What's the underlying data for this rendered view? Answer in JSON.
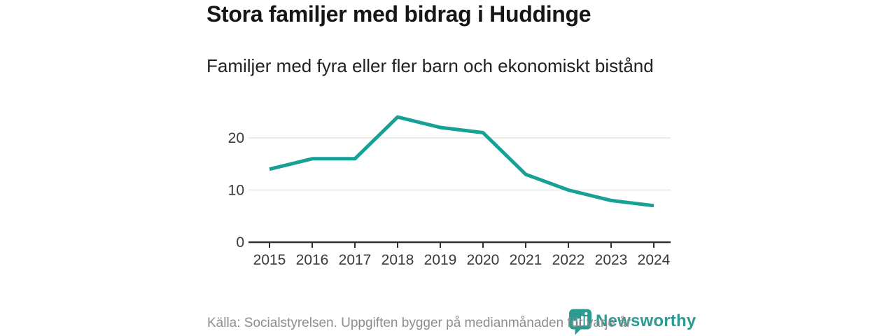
{
  "header": {
    "title": "Stora familjer med bidrag i Huddinge",
    "subtitle": "Familjer med fyra eller fler barn och ekonomiskt bistånd"
  },
  "footer": {
    "source_text": "Källa: Socialstyrelsen. Uppgiften bygger på medianmånaden för varje år",
    "brand_name": "Newsworthy",
    "brand_icon": "newsworthy-speech-bubble-bar-chart-icon"
  },
  "colors": {
    "accent_line": "#17a096",
    "brand_teal": "#2b9a90",
    "grid": "#e4e4e4",
    "axis": "#2e2e2e",
    "axis_text": "#3a3a3a",
    "title_text": "#161616",
    "muted_text": "#8d8d8d"
  },
  "chart_data": {
    "type": "line",
    "title": "Stora familjer med bidrag i Huddinge",
    "subtitle": "Familjer med fyra eller fler barn och ekonomiskt bistånd",
    "categories": [
      "2015",
      "2016",
      "2017",
      "2018",
      "2019",
      "2020",
      "2021",
      "2022",
      "2023",
      "2024"
    ],
    "series": [
      {
        "name": "Familjer med fyra eller fler barn och ekonomiskt bistånd",
        "values": [
          14,
          16,
          16,
          24,
          22,
          21,
          13,
          10,
          8,
          7
        ]
      }
    ],
    "xlabel": "",
    "ylabel": "",
    "yticks": [
      0,
      10,
      20
    ],
    "ylim": [
      0,
      26
    ],
    "grid": true,
    "legend": "none"
  }
}
